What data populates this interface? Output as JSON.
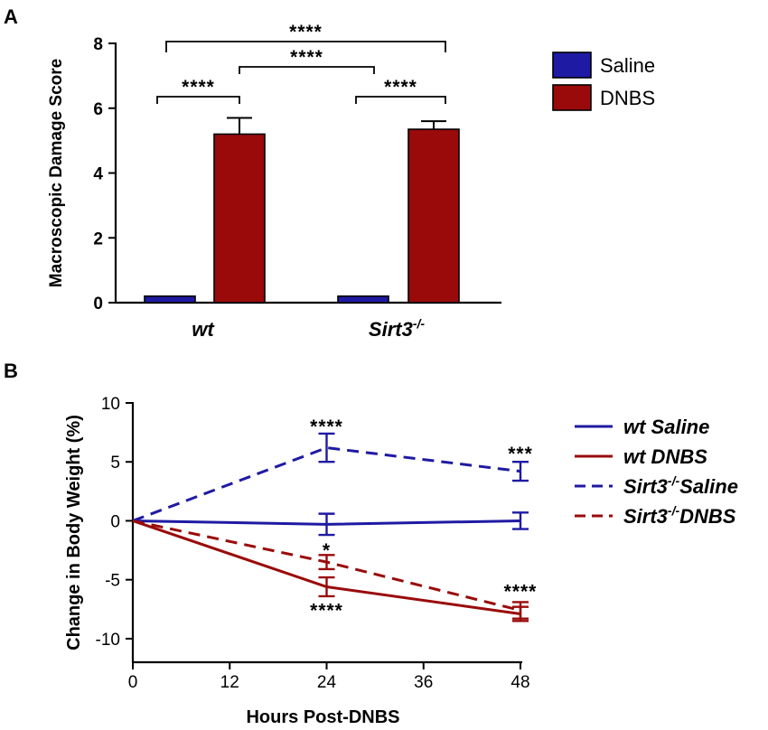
{
  "chart_data": [
    {
      "panel": "A",
      "type": "bar",
      "ylabel": "Macroscopic Damage Score",
      "ylim": [
        0,
        8
      ],
      "yticks": [
        "0",
        "2",
        "4",
        "6",
        "8"
      ],
      "categories": [
        "wt",
        "Sirt3-/-"
      ],
      "category_labels": [
        {
          "base": "wt",
          "sup": ""
        },
        {
          "base": "Sirt3",
          "sup": "-/-"
        }
      ],
      "series": [
        {
          "name": "Saline",
          "color": "#1f1aa3",
          "values": [
            0.2,
            0.2
          ],
          "errors": [
            0,
            0
          ]
        },
        {
          "name": "DNBS",
          "color": "#9a0a0a",
          "values": [
            5.2,
            5.35
          ],
          "errors": [
            0.5,
            0.25
          ]
        }
      ],
      "legend": [
        "Saline",
        "DNBS"
      ],
      "annotations": [
        {
          "from": "wt Saline",
          "to": "wt DNBS",
          "label": "****"
        },
        {
          "from": "Sirt3-/- Saline",
          "to": "Sirt3-/- DNBS",
          "label": "****"
        },
        {
          "from": "wt DNBS",
          "to": "Sirt3-/- Saline",
          "label": "****"
        },
        {
          "from": "wt Saline",
          "to": "Sirt3-/- DNBS",
          "label": "****"
        }
      ]
    },
    {
      "panel": "B",
      "type": "line",
      "xlabel": "Hours Post-DNBS",
      "ylabel": "Change in Body Weight (%)",
      "xlim": [
        0,
        48
      ],
      "ylim": [
        -12,
        10
      ],
      "xticks": [
        "0",
        "12",
        "24",
        "36",
        "48"
      ],
      "yticks": [
        "-10",
        "-5",
        "0",
        "5",
        "10"
      ],
      "x": [
        0,
        24,
        48
      ],
      "series": [
        {
          "name": "wt Saline",
          "legend_base": "wt Saline",
          "legend_sup": "",
          "legend_rest": "",
          "color": "#1f1aa3",
          "dashed": false,
          "values": [
            0,
            -0.3,
            0
          ],
          "errors": [
            0,
            0.9,
            0.7
          ]
        },
        {
          "name": "wt DNBS",
          "legend_base": "wt DNBS",
          "legend_sup": "",
          "legend_rest": "",
          "color": "#9a0a0a",
          "dashed": false,
          "values": [
            0,
            -5.6,
            -7.9
          ],
          "errors": [
            0,
            0.8,
            0.6
          ]
        },
        {
          "name": "Sirt3-/-Saline",
          "legend_base": "Sirt3",
          "legend_sup": "-/-",
          "legend_rest": "Saline",
          "color": "#1f1aa3",
          "dashed": true,
          "values": [
            0,
            6.2,
            4.2
          ],
          "errors": [
            0,
            1.2,
            0.8
          ]
        },
        {
          "name": "Sirt3-/-DNBS",
          "legend_base": "Sirt3",
          "legend_sup": "-/-",
          "legend_rest": "DNBS",
          "color": "#9a0a0a",
          "dashed": true,
          "values": [
            0,
            -3.5,
            -7.6
          ],
          "errors": [
            0,
            0.6,
            0.7
          ]
        }
      ],
      "annotations": [
        {
          "x": 24,
          "y": 8.0,
          "label": "****"
        },
        {
          "x": 48,
          "y": 5.7,
          "label": "***"
        },
        {
          "x": 24,
          "y": -2.5,
          "label": "*"
        },
        {
          "x": 24,
          "y": -7.6,
          "label": "****"
        },
        {
          "x": 48,
          "y": -6.0,
          "label": "****"
        }
      ]
    }
  ]
}
